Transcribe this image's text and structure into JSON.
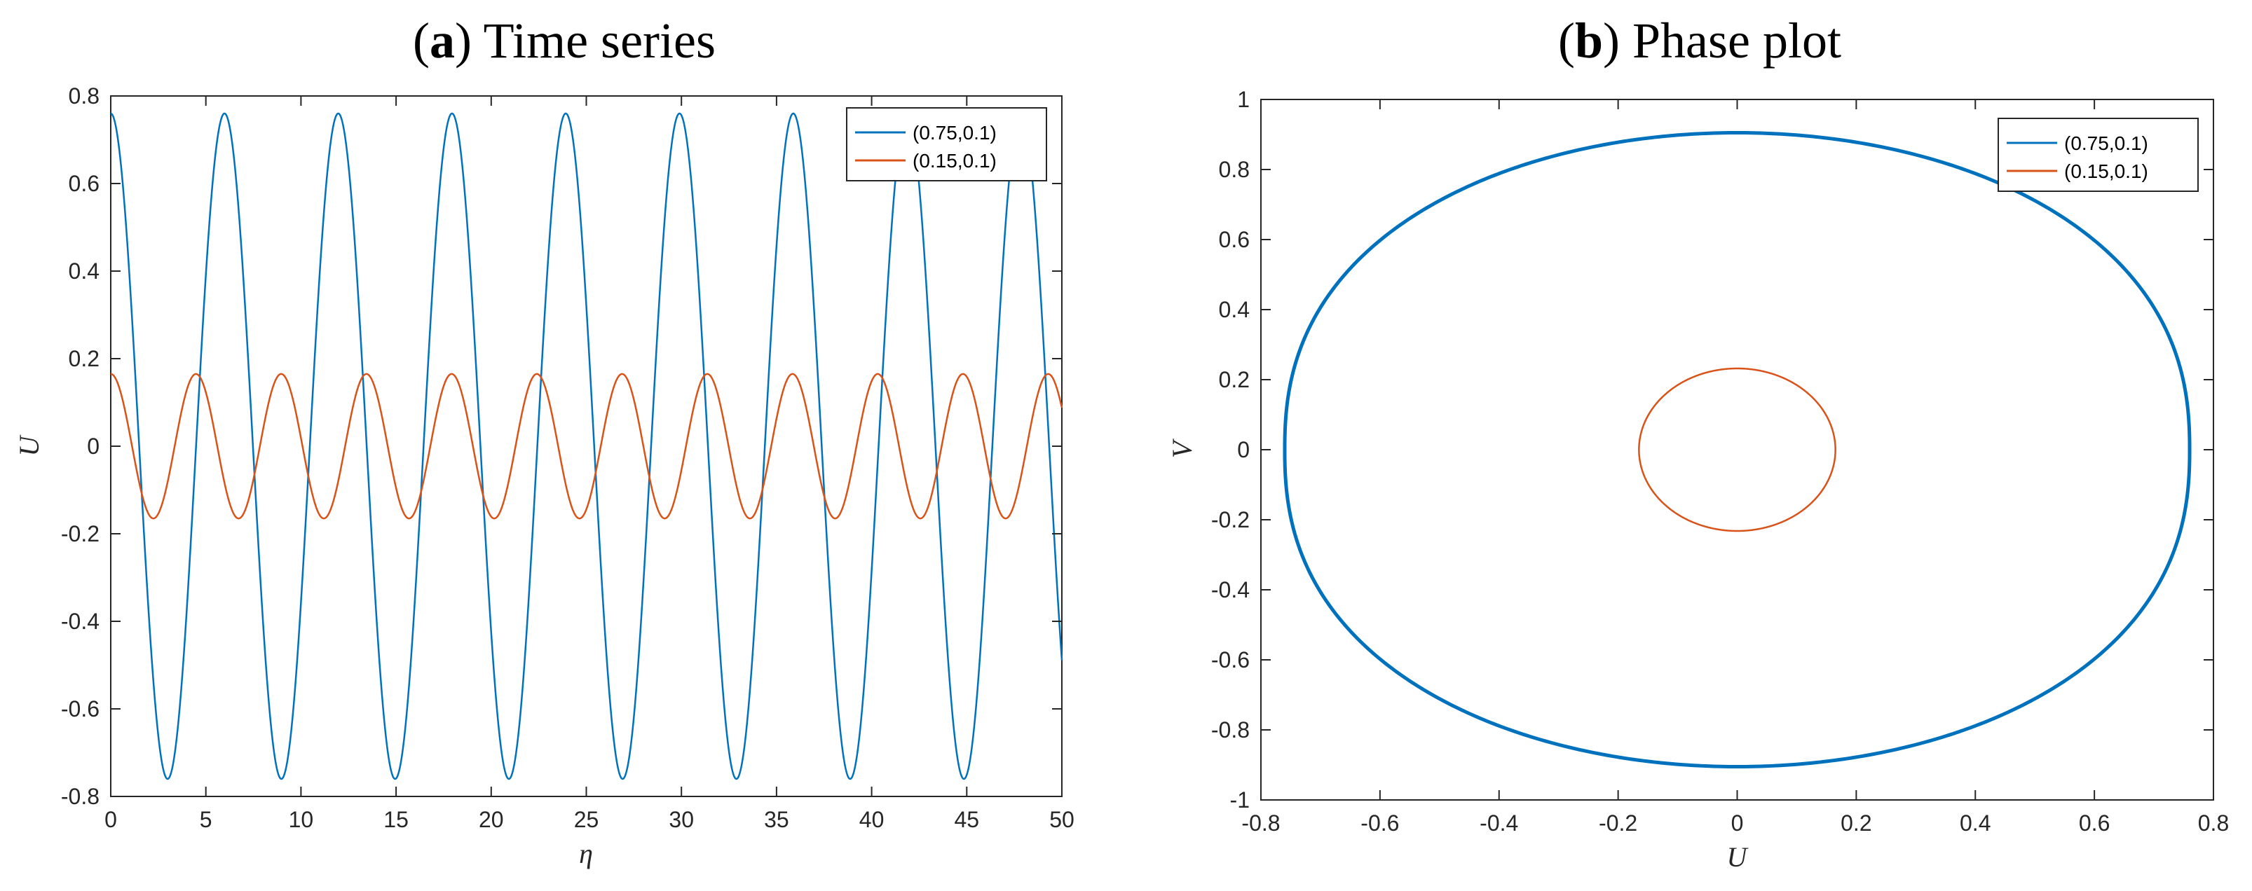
{
  "chart_data": [
    {
      "id": "a",
      "type": "line",
      "title_prefix": "(",
      "title_letter": "a",
      "title_rest": ") Time series",
      "xlabel": "η",
      "ylabel": "U",
      "xlim": [
        0,
        50
      ],
      "ylim": [
        -0.8,
        0.8
      ],
      "xticks": [
        0,
        5,
        10,
        15,
        20,
        25,
        30,
        35,
        40,
        45,
        50
      ],
      "xtick_labels": [
        "0",
        "5",
        "10",
        "15",
        "20",
        "25",
        "30",
        "35",
        "40",
        "45",
        "50"
      ],
      "yticks": [
        -0.8,
        -0.6,
        -0.4,
        -0.2,
        0,
        0.2,
        0.4,
        0.6,
        0.8
      ],
      "ytick_labels": [
        "-0.8",
        "-0.6",
        "-0.4",
        "-0.2",
        "0",
        "0.2",
        "0.4",
        "0.6",
        "0.8"
      ],
      "grid": false,
      "legend_position": "top-right",
      "series": [
        {
          "name": "(0.75,0.1)",
          "color": "#0072BD",
          "amplitude": 0.76,
          "period": 5.98,
          "function": "cos",
          "x_range": [
            0,
            50
          ]
        },
        {
          "name": "(0.15,0.1)",
          "color": "#D95319",
          "amplitude": 0.165,
          "period": 4.48,
          "function": "cos",
          "x_range": [
            0,
            50
          ]
        }
      ]
    },
    {
      "id": "b",
      "type": "line",
      "title_prefix": "(",
      "title_letter": "b",
      "title_rest": ") Phase plot",
      "xlabel": "U",
      "ylabel": "V",
      "xlim": [
        -0.8,
        0.8
      ],
      "ylim": [
        -1,
        1
      ],
      "xticks": [
        -0.8,
        -0.6,
        -0.4,
        -0.2,
        0,
        0.2,
        0.4,
        0.6,
        0.8
      ],
      "xtick_labels": [
        "-0.8",
        "-0.6",
        "-0.4",
        "-0.2",
        "0",
        "0.2",
        "0.4",
        "0.6",
        "0.8"
      ],
      "yticks": [
        -1,
        -0.8,
        -0.6,
        -0.4,
        -0.2,
        0,
        0.2,
        0.4,
        0.6,
        0.8,
        1
      ],
      "ytick_labels": [
        "-1",
        "-0.8",
        "-0.6",
        "-0.4",
        "-0.2",
        "0",
        "0.2",
        "0.4",
        "0.6",
        "0.8",
        "1"
      ],
      "grid": false,
      "legend_position": "top-right",
      "series": [
        {
          "name": "(0.75,0.1)",
          "color": "#0072BD",
          "shape": "closed-orbit",
          "u_max": 0.76,
          "v_max": 0.905
        },
        {
          "name": "(0.15,0.1)",
          "color": "#D95319",
          "shape": "ellipse",
          "u_max": 0.165,
          "v_max": 0.232
        }
      ]
    }
  ]
}
